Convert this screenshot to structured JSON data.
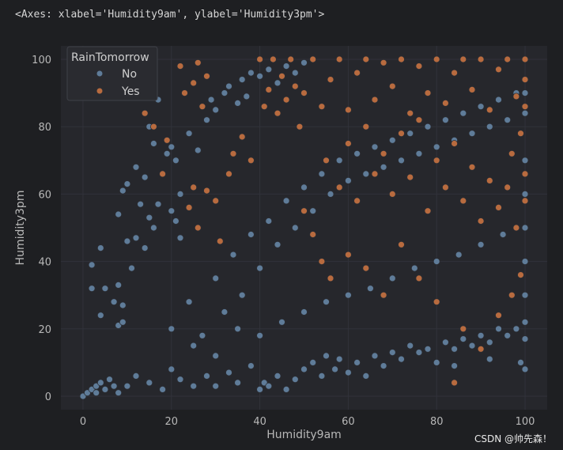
{
  "header": {
    "repr": "<Axes: xlabel='Humidity9am', ylabel='Humidity3pm'>"
  },
  "watermark": "CSDN @帅先森！",
  "colors": {
    "background": "#1e1f22",
    "axes_face": "#26272c",
    "grid": "#31323a",
    "no": "#5f7c99",
    "yes": "#b86b3f",
    "edge": "#2b2d33"
  },
  "chart_data": {
    "type": "scatter",
    "xlabel": "Humidity9am",
    "ylabel": "Humidity3pm",
    "xlim": [
      -5,
      105
    ],
    "ylim": [
      -4,
      104
    ],
    "xticks": [
      "0",
      "20",
      "40",
      "60",
      "80",
      "100"
    ],
    "yticks": [
      "0",
      "20",
      "40",
      "60",
      "80",
      "100"
    ],
    "grid": true,
    "legend": {
      "title": "RainTomorrow",
      "placement": "upper-left",
      "entries": [
        "No",
        "Yes"
      ]
    },
    "series": [
      {
        "name": "No",
        "color": "#5f7c99",
        "points": [
          [
            0,
            0
          ],
          [
            1,
            1
          ],
          [
            2,
            2
          ],
          [
            3,
            1
          ],
          [
            3,
            3
          ],
          [
            4,
            4
          ],
          [
            5,
            2
          ],
          [
            6,
            5
          ],
          [
            7,
            3
          ],
          [
            8,
            1
          ],
          [
            2,
            32
          ],
          [
            2,
            39
          ],
          [
            4,
            24
          ],
          [
            4,
            44
          ],
          [
            5,
            32
          ],
          [
            7,
            28
          ],
          [
            8,
            21
          ],
          [
            8,
            33
          ],
          [
            9,
            22
          ],
          [
            9,
            27
          ],
          [
            8,
            54
          ],
          [
            9,
            61
          ],
          [
            10,
            46
          ],
          [
            11,
            38
          ],
          [
            12,
            47
          ],
          [
            13,
            57
          ],
          [
            14,
            44
          ],
          [
            15,
            53
          ],
          [
            16,
            50
          ],
          [
            17,
            57
          ],
          [
            10,
            63
          ],
          [
            12,
            68
          ],
          [
            14,
            65
          ],
          [
            15,
            80
          ],
          [
            16,
            75
          ],
          [
            17,
            88
          ],
          [
            19,
            72
          ],
          [
            20,
            55
          ],
          [
            21,
            52
          ],
          [
            22,
            60
          ],
          [
            20,
            74
          ],
          [
            21,
            70
          ],
          [
            22,
            47
          ],
          [
            24,
            78
          ],
          [
            26,
            73
          ],
          [
            28,
            82
          ],
          [
            29,
            88
          ],
          [
            30,
            85
          ],
          [
            32,
            90
          ],
          [
            33,
            92
          ],
          [
            35,
            87
          ],
          [
            36,
            94
          ],
          [
            37,
            89
          ],
          [
            38,
            96
          ],
          [
            40,
            95
          ],
          [
            42,
            97
          ],
          [
            44,
            93
          ],
          [
            46,
            98
          ],
          [
            48,
            96
          ],
          [
            50,
            99
          ],
          [
            10,
            3
          ],
          [
            12,
            6
          ],
          [
            15,
            4
          ],
          [
            18,
            2
          ],
          [
            20,
            8
          ],
          [
            22,
            5
          ],
          [
            25,
            3
          ],
          [
            28,
            6
          ],
          [
            30,
            3
          ],
          [
            33,
            7
          ],
          [
            35,
            4
          ],
          [
            38,
            9
          ],
          [
            40,
            2
          ],
          [
            41,
            4
          ],
          [
            42,
            3
          ],
          [
            44,
            6
          ],
          [
            46,
            2
          ],
          [
            48,
            5
          ],
          [
            50,
            8
          ],
          [
            52,
            10
          ],
          [
            54,
            6
          ],
          [
            55,
            12
          ],
          [
            57,
            8
          ],
          [
            58,
            11
          ],
          [
            60,
            7
          ],
          [
            62,
            10
          ],
          [
            64,
            6
          ],
          [
            66,
            12
          ],
          [
            68,
            9
          ],
          [
            70,
            13
          ],
          [
            72,
            11
          ],
          [
            74,
            15
          ],
          [
            76,
            13
          ],
          [
            78,
            14
          ],
          [
            80,
            10
          ],
          [
            82,
            16
          ],
          [
            84,
            14
          ],
          [
            86,
            17
          ],
          [
            88,
            15
          ],
          [
            90,
            18
          ],
          [
            92,
            16
          ],
          [
            94,
            20
          ],
          [
            96,
            18
          ],
          [
            98,
            20
          ],
          [
            100,
            17
          ],
          [
            100,
            22
          ],
          [
            99,
            10
          ],
          [
            100,
            8
          ],
          [
            92,
            11
          ],
          [
            84,
            9
          ],
          [
            20,
            20
          ],
          [
            24,
            28
          ],
          [
            27,
            18
          ],
          [
            30,
            35
          ],
          [
            32,
            25
          ],
          [
            34,
            42
          ],
          [
            36,
            30
          ],
          [
            38,
            48
          ],
          [
            40,
            38
          ],
          [
            42,
            52
          ],
          [
            44,
            45
          ],
          [
            46,
            58
          ],
          [
            48,
            50
          ],
          [
            50,
            62
          ],
          [
            52,
            55
          ],
          [
            54,
            66
          ],
          [
            56,
            60
          ],
          [
            58,
            70
          ],
          [
            60,
            64
          ],
          [
            62,
            72
          ],
          [
            64,
            66
          ],
          [
            66,
            74
          ],
          [
            68,
            68
          ],
          [
            70,
            76
          ],
          [
            72,
            70
          ],
          [
            74,
            78
          ],
          [
            76,
            72
          ],
          [
            78,
            80
          ],
          [
            80,
            74
          ],
          [
            82,
            82
          ],
          [
            84,
            76
          ],
          [
            86,
            84
          ],
          [
            88,
            78
          ],
          [
            90,
            86
          ],
          [
            92,
            80
          ],
          [
            94,
            88
          ],
          [
            96,
            82
          ],
          [
            98,
            90
          ],
          [
            100,
            84
          ],
          [
            100,
            90
          ],
          [
            25,
            15
          ],
          [
            30,
            12
          ],
          [
            35,
            20
          ],
          [
            40,
            18
          ],
          [
            45,
            22
          ],
          [
            50,
            25
          ],
          [
            55,
            28
          ],
          [
            60,
            30
          ],
          [
            65,
            32
          ],
          [
            70,
            35
          ],
          [
            75,
            38
          ],
          [
            80,
            40
          ],
          [
            85,
            42
          ],
          [
            90,
            45
          ],
          [
            95,
            48
          ],
          [
            100,
            50
          ],
          [
            100,
            60
          ],
          [
            100,
            70
          ],
          [
            100,
            40
          ],
          [
            100,
            30
          ]
        ]
      },
      {
        "name": "Yes",
        "color": "#b86b3f",
        "points": [
          [
            14,
            84
          ],
          [
            16,
            80
          ],
          [
            18,
            66
          ],
          [
            19,
            76
          ],
          [
            22,
            98
          ],
          [
            23,
            90
          ],
          [
            25,
            93
          ],
          [
            26,
            99
          ],
          [
            27,
            86
          ],
          [
            28,
            95
          ],
          [
            24,
            56
          ],
          [
            25,
            62
          ],
          [
            26,
            50
          ],
          [
            28,
            61
          ],
          [
            30,
            58
          ],
          [
            31,
            46
          ],
          [
            33,
            66
          ],
          [
            34,
            72
          ],
          [
            36,
            77
          ],
          [
            38,
            70
          ],
          [
            40,
            100
          ],
          [
            41,
            86
          ],
          [
            42,
            91
          ],
          [
            43,
            100
          ],
          [
            44,
            84
          ],
          [
            45,
            95
          ],
          [
            46,
            88
          ],
          [
            47,
            100
          ],
          [
            48,
            92
          ],
          [
            49,
            80
          ],
          [
            50,
            90
          ],
          [
            52,
            100
          ],
          [
            54,
            86
          ],
          [
            56,
            94
          ],
          [
            58,
            100
          ],
          [
            60,
            85
          ],
          [
            62,
            96
          ],
          [
            64,
            100
          ],
          [
            66,
            88
          ],
          [
            68,
            99
          ],
          [
            70,
            92
          ],
          [
            72,
            100
          ],
          [
            74,
            84
          ],
          [
            76,
            98
          ],
          [
            78,
            90
          ],
          [
            80,
            100
          ],
          [
            82,
            87
          ],
          [
            84,
            96
          ],
          [
            86,
            100
          ],
          [
            88,
            91
          ],
          [
            90,
            100
          ],
          [
            92,
            85
          ],
          [
            94,
            97
          ],
          [
            96,
            100
          ],
          [
            98,
            89
          ],
          [
            100,
            100
          ],
          [
            100,
            94
          ],
          [
            100,
            86
          ],
          [
            99,
            78
          ],
          [
            97,
            72
          ],
          [
            55,
            70
          ],
          [
            58,
            62
          ],
          [
            60,
            75
          ],
          [
            62,
            58
          ],
          [
            64,
            80
          ],
          [
            66,
            66
          ],
          [
            68,
            72
          ],
          [
            70,
            60
          ],
          [
            72,
            78
          ],
          [
            74,
            65
          ],
          [
            76,
            82
          ],
          [
            78,
            55
          ],
          [
            80,
            70
          ],
          [
            82,
            62
          ],
          [
            84,
            75
          ],
          [
            86,
            58
          ],
          [
            88,
            68
          ],
          [
            90,
            52
          ],
          [
            92,
            64
          ],
          [
            94,
            56
          ],
          [
            96,
            62
          ],
          [
            98,
            50
          ],
          [
            100,
            58
          ],
          [
            100,
            66
          ],
          [
            50,
            55
          ],
          [
            52,
            48
          ],
          [
            54,
            40
          ],
          [
            56,
            35
          ],
          [
            60,
            42
          ],
          [
            64,
            38
          ],
          [
            68,
            30
          ],
          [
            72,
            45
          ],
          [
            76,
            35
          ],
          [
            80,
            28
          ],
          [
            84,
            4
          ],
          [
            86,
            20
          ],
          [
            90,
            14
          ],
          [
            94,
            24
          ],
          [
            97,
            30
          ],
          [
            99,
            36
          ]
        ]
      }
    ]
  }
}
